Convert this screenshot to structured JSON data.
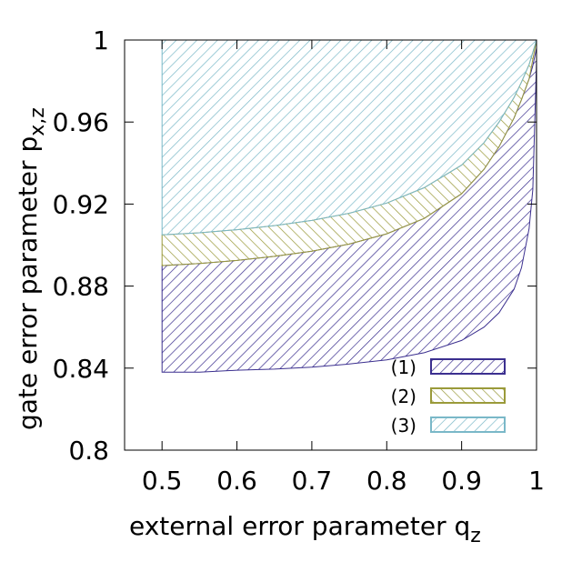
{
  "chart_data": {
    "type": "area",
    "xlabel": "external error parameter q",
    "xlabel_sub": "z",
    "ylabel": "gate error parameter p",
    "ylabel_sub": "x,z",
    "xlim": [
      0.45,
      1.0
    ],
    "ylim": [
      0.8,
      1.0
    ],
    "x_ticks": [
      0.5,
      0.6,
      0.7,
      0.8,
      0.9,
      1.0
    ],
    "x_tick_labels": [
      "0.5",
      "0.6",
      "0.7",
      "0.8",
      "0.9",
      "1"
    ],
    "y_ticks": [
      0.8,
      0.84,
      0.88,
      0.92,
      0.96,
      1.0
    ],
    "y_tick_labels": [
      "0.8",
      "0.84",
      "0.88",
      "0.92",
      "0.96",
      "1"
    ],
    "grid": false,
    "legend_position": "bottom-right",
    "series": [
      {
        "name": "(1)",
        "color": "#3b2f8f",
        "pattern": "hatch-up",
        "x": [
          0.5,
          0.55,
          0.6,
          0.65,
          0.7,
          0.75,
          0.8,
          0.85,
          0.9,
          0.93,
          0.95,
          0.97,
          0.98,
          0.99,
          0.995,
          1.0
        ],
        "lower": [
          0.838,
          0.838,
          0.839,
          0.8395,
          0.8405,
          0.842,
          0.844,
          0.8475,
          0.8535,
          0.86,
          0.867,
          0.8785,
          0.889,
          0.908,
          0.927,
          0.99
        ],
        "upper": [
          0.89,
          0.891,
          0.8925,
          0.8945,
          0.897,
          0.9005,
          0.9055,
          0.913,
          0.925,
          0.937,
          0.948,
          0.962,
          0.971,
          0.981,
          0.9875,
          0.996
        ]
      },
      {
        "name": "(2)",
        "color": "#9a9a3a",
        "pattern": "hatch-down",
        "x": [
          0.5,
          0.55,
          0.6,
          0.65,
          0.7,
          0.75,
          0.8,
          0.85,
          0.9,
          0.93,
          0.95,
          0.97,
          0.98,
          0.99,
          1.0
        ],
        "lower": [
          0.89,
          0.891,
          0.8925,
          0.8945,
          0.897,
          0.9005,
          0.9055,
          0.913,
          0.925,
          0.937,
          0.948,
          0.962,
          0.971,
          0.981,
          1.0
        ],
        "upper": [
          0.905,
          0.906,
          0.9075,
          0.9095,
          0.912,
          0.9155,
          0.9205,
          0.928,
          0.939,
          0.95,
          0.96,
          0.972,
          0.9795,
          0.988,
          1.0
        ]
      },
      {
        "name": "(3)",
        "color": "#7ab8c8",
        "pattern": "hatch-up",
        "x": [
          0.5,
          0.55,
          0.6,
          0.65,
          0.7,
          0.75,
          0.8,
          0.85,
          0.9,
          0.93,
          0.95,
          0.97,
          0.98,
          0.99,
          1.0
        ],
        "lower": [
          0.905,
          0.906,
          0.9075,
          0.9095,
          0.912,
          0.9155,
          0.9205,
          0.928,
          0.939,
          0.95,
          0.96,
          0.972,
          0.9795,
          0.988,
          1.0
        ],
        "upper": [
          1.0,
          1.0,
          1.0,
          1.0,
          1.0,
          1.0,
          1.0,
          1.0,
          1.0,
          1.0,
          1.0,
          1.0,
          1.0,
          1.0,
          1.0
        ]
      }
    ]
  }
}
